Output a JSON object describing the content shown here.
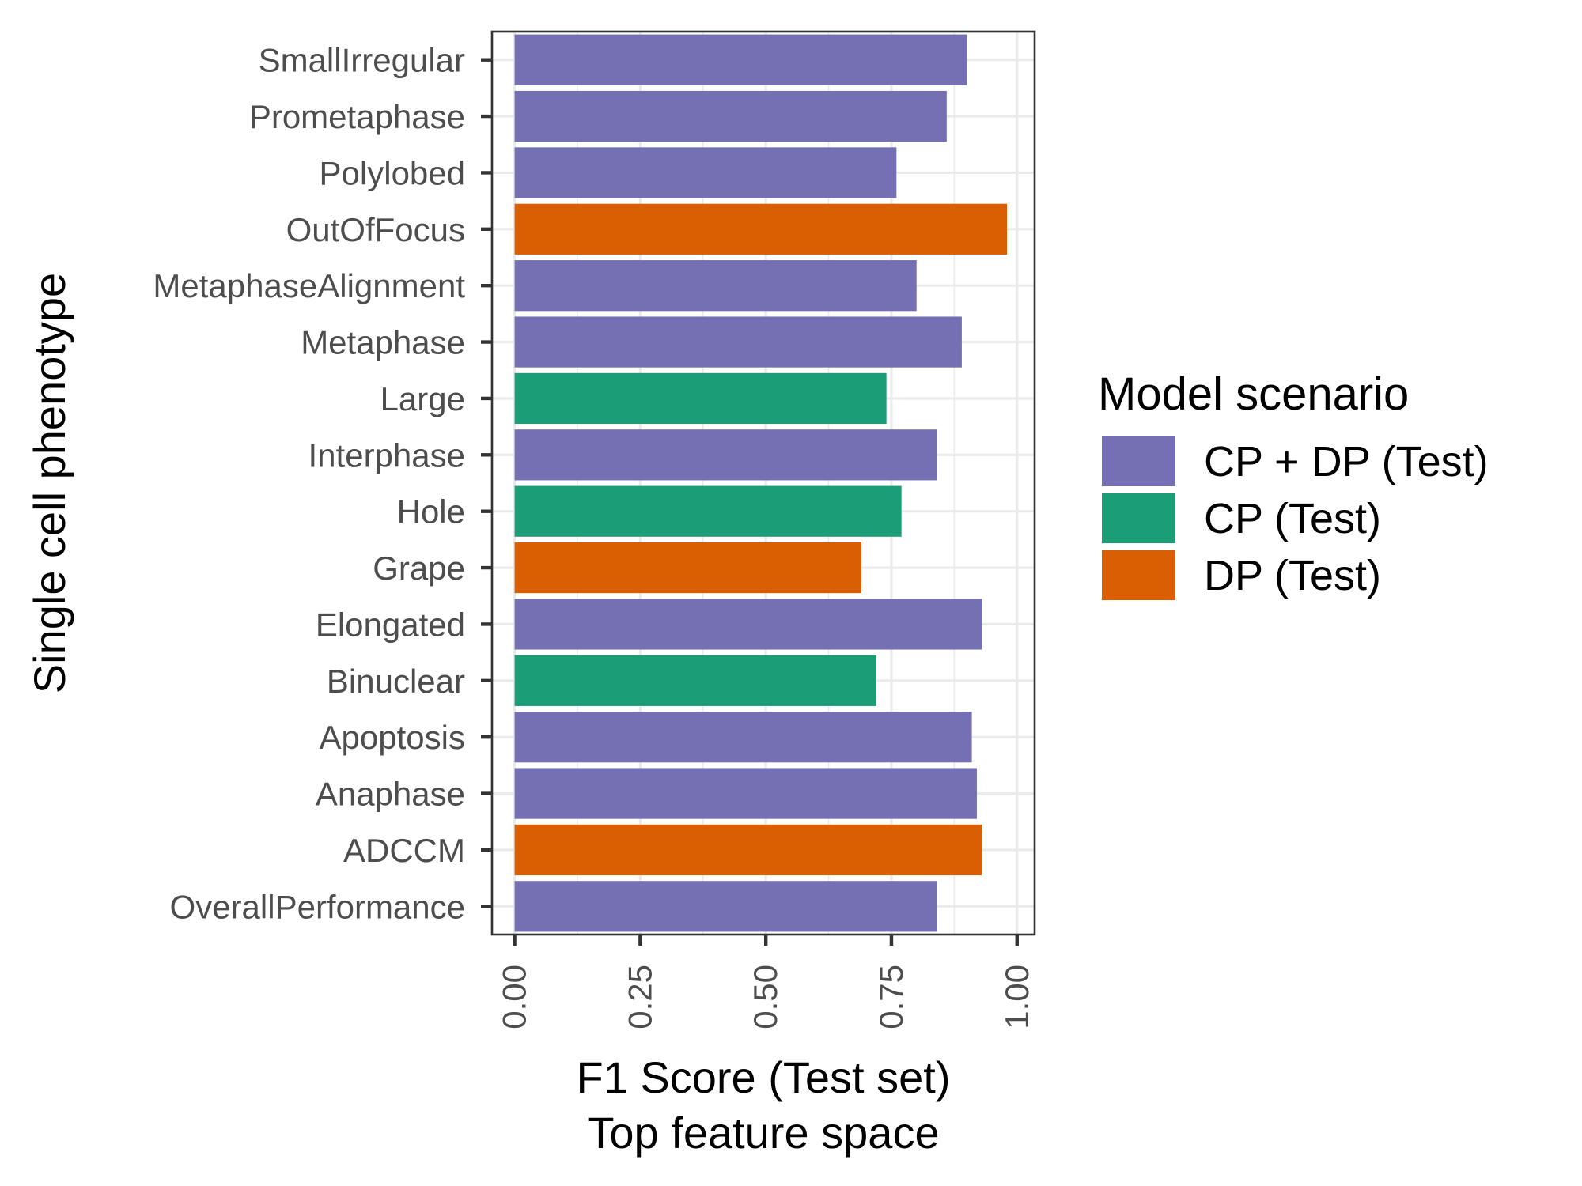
{
  "chart_data": {
    "type": "bar",
    "orientation": "horizontal",
    "categories": [
      "SmallIrregular",
      "Prometaphase",
      "Polylobed",
      "OutOfFocus",
      "MetaphaseAlignment",
      "Metaphase",
      "Large",
      "Interphase",
      "Hole",
      "Grape",
      "Elongated",
      "Binuclear",
      "Apoptosis",
      "Anaphase",
      "ADCCM",
      "OverallPerformance"
    ],
    "values": [
      0.9,
      0.86,
      0.76,
      0.98,
      0.8,
      0.89,
      0.74,
      0.84,
      0.77,
      0.69,
      0.93,
      0.72,
      0.91,
      0.92,
      0.93,
      0.84
    ],
    "groups": [
      "CP + DP (Test)",
      "CP + DP (Test)",
      "CP + DP (Test)",
      "DP (Test)",
      "CP + DP (Test)",
      "CP + DP (Test)",
      "CP (Test)",
      "CP + DP (Test)",
      "CP (Test)",
      "DP (Test)",
      "CP + DP (Test)",
      "CP (Test)",
      "CP + DP (Test)",
      "CP + DP (Test)",
      "DP (Test)",
      "CP + DP (Test)"
    ],
    "xlabel": [
      "F1 Score (Test set)",
      "Top feature space"
    ],
    "ylabel": "Single cell phenotype",
    "xlim": [
      -0.045,
      1.035
    ],
    "xticks": [
      0,
      0.25,
      0.5,
      0.75,
      1
    ],
    "xtick_labels": [
      "0.00",
      "0.25",
      "0.50",
      "0.75",
      "1.00"
    ],
    "grid": true,
    "legend": {
      "title": "Model scenario",
      "position": "right",
      "entries": [
        {
          "label": "CP + DP (Test)",
          "color": "#7570b3"
        },
        {
          "label": "CP (Test)",
          "color": "#1b9e77"
        },
        {
          "label": "DP (Test)",
          "color": "#d95f02"
        }
      ]
    }
  }
}
